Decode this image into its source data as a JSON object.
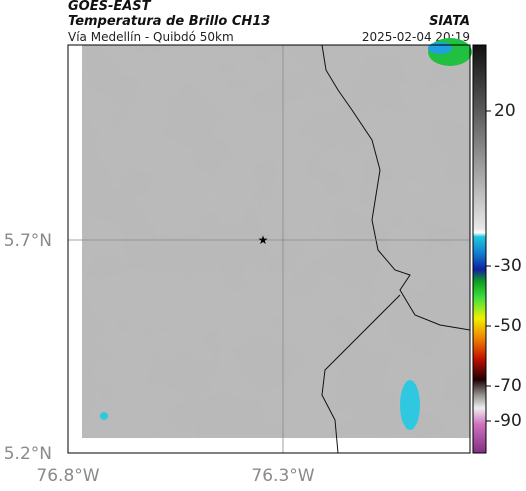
{
  "header": {
    "title": "GOES-EAST",
    "subtitle": "Temperatura de Brillo CH13",
    "region": "Vía Medellín - Quibdó 50km",
    "source": "SIATA",
    "datetime": "2025-02-04 20:19"
  },
  "map": {
    "lat_labels": [
      "5.7°N",
      "5.2°N"
    ],
    "lon_labels": [
      "76.8°W",
      "76.3°W"
    ]
  },
  "colorbar": {
    "tick_labels": [
      "20",
      "-30",
      "-50",
      "-70",
      "-90"
    ]
  }
}
